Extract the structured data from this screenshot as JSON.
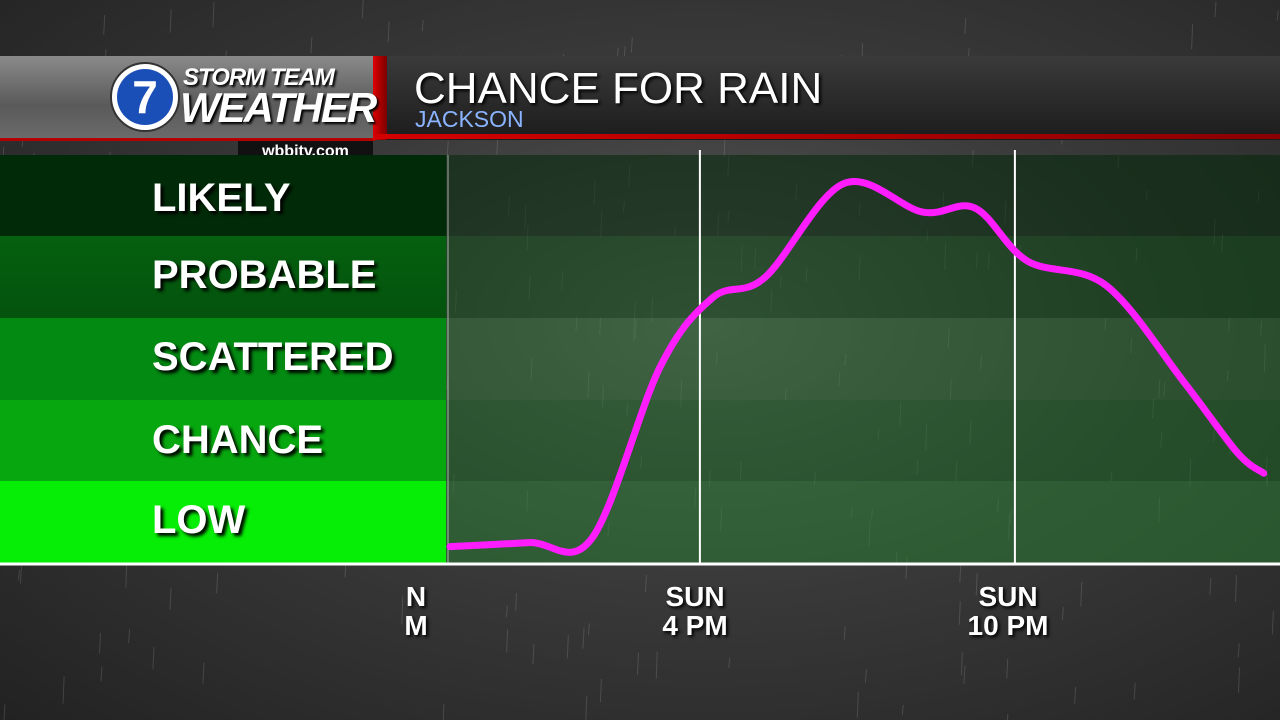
{
  "header": {
    "logo_line1": "STORM TEAM",
    "logo_line2": "WEATHER",
    "logo_number": "7",
    "site": "wbbjtv.com",
    "title": "CHANCE FOR RAIN",
    "subtitle": "JACKSON"
  },
  "colors": {
    "accent_red": "#d40000",
    "line": "#ff1cff",
    "band_likely": "#012b08",
    "band_probable": "#05600f",
    "band_scattered": "#038a12",
    "band_chance": "#07a80f",
    "band_low": "#06ed06"
  },
  "chart_data": {
    "type": "line",
    "title": "CHANCE FOR RAIN",
    "categories_y": [
      "LOW",
      "CHANCE",
      "SCATTERED",
      "PROBABLE",
      "LIKELY"
    ],
    "x_ticks": [
      {
        "day": "N",
        "time": "M"
      },
      {
        "day": "SUN",
        "time": "4 PM"
      },
      {
        "day": "SUN",
        "time": "10 PM"
      }
    ],
    "ylim": [
      0,
      5
    ],
    "grid": false,
    "series": [
      {
        "x": [
          0,
          1.5,
          2.7,
          4.0,
          5.0,
          6.0,
          7.5,
          9.0,
          10.0,
          11.0,
          12.5,
          14.0,
          15.0,
          15.5
        ],
        "y": [
          0.2,
          0.25,
          0.3,
          2.4,
          3.25,
          3.5,
          4.65,
          4.3,
          4.35,
          3.7,
          3.4,
          2.2,
          1.35,
          1.1
        ]
      }
    ]
  }
}
